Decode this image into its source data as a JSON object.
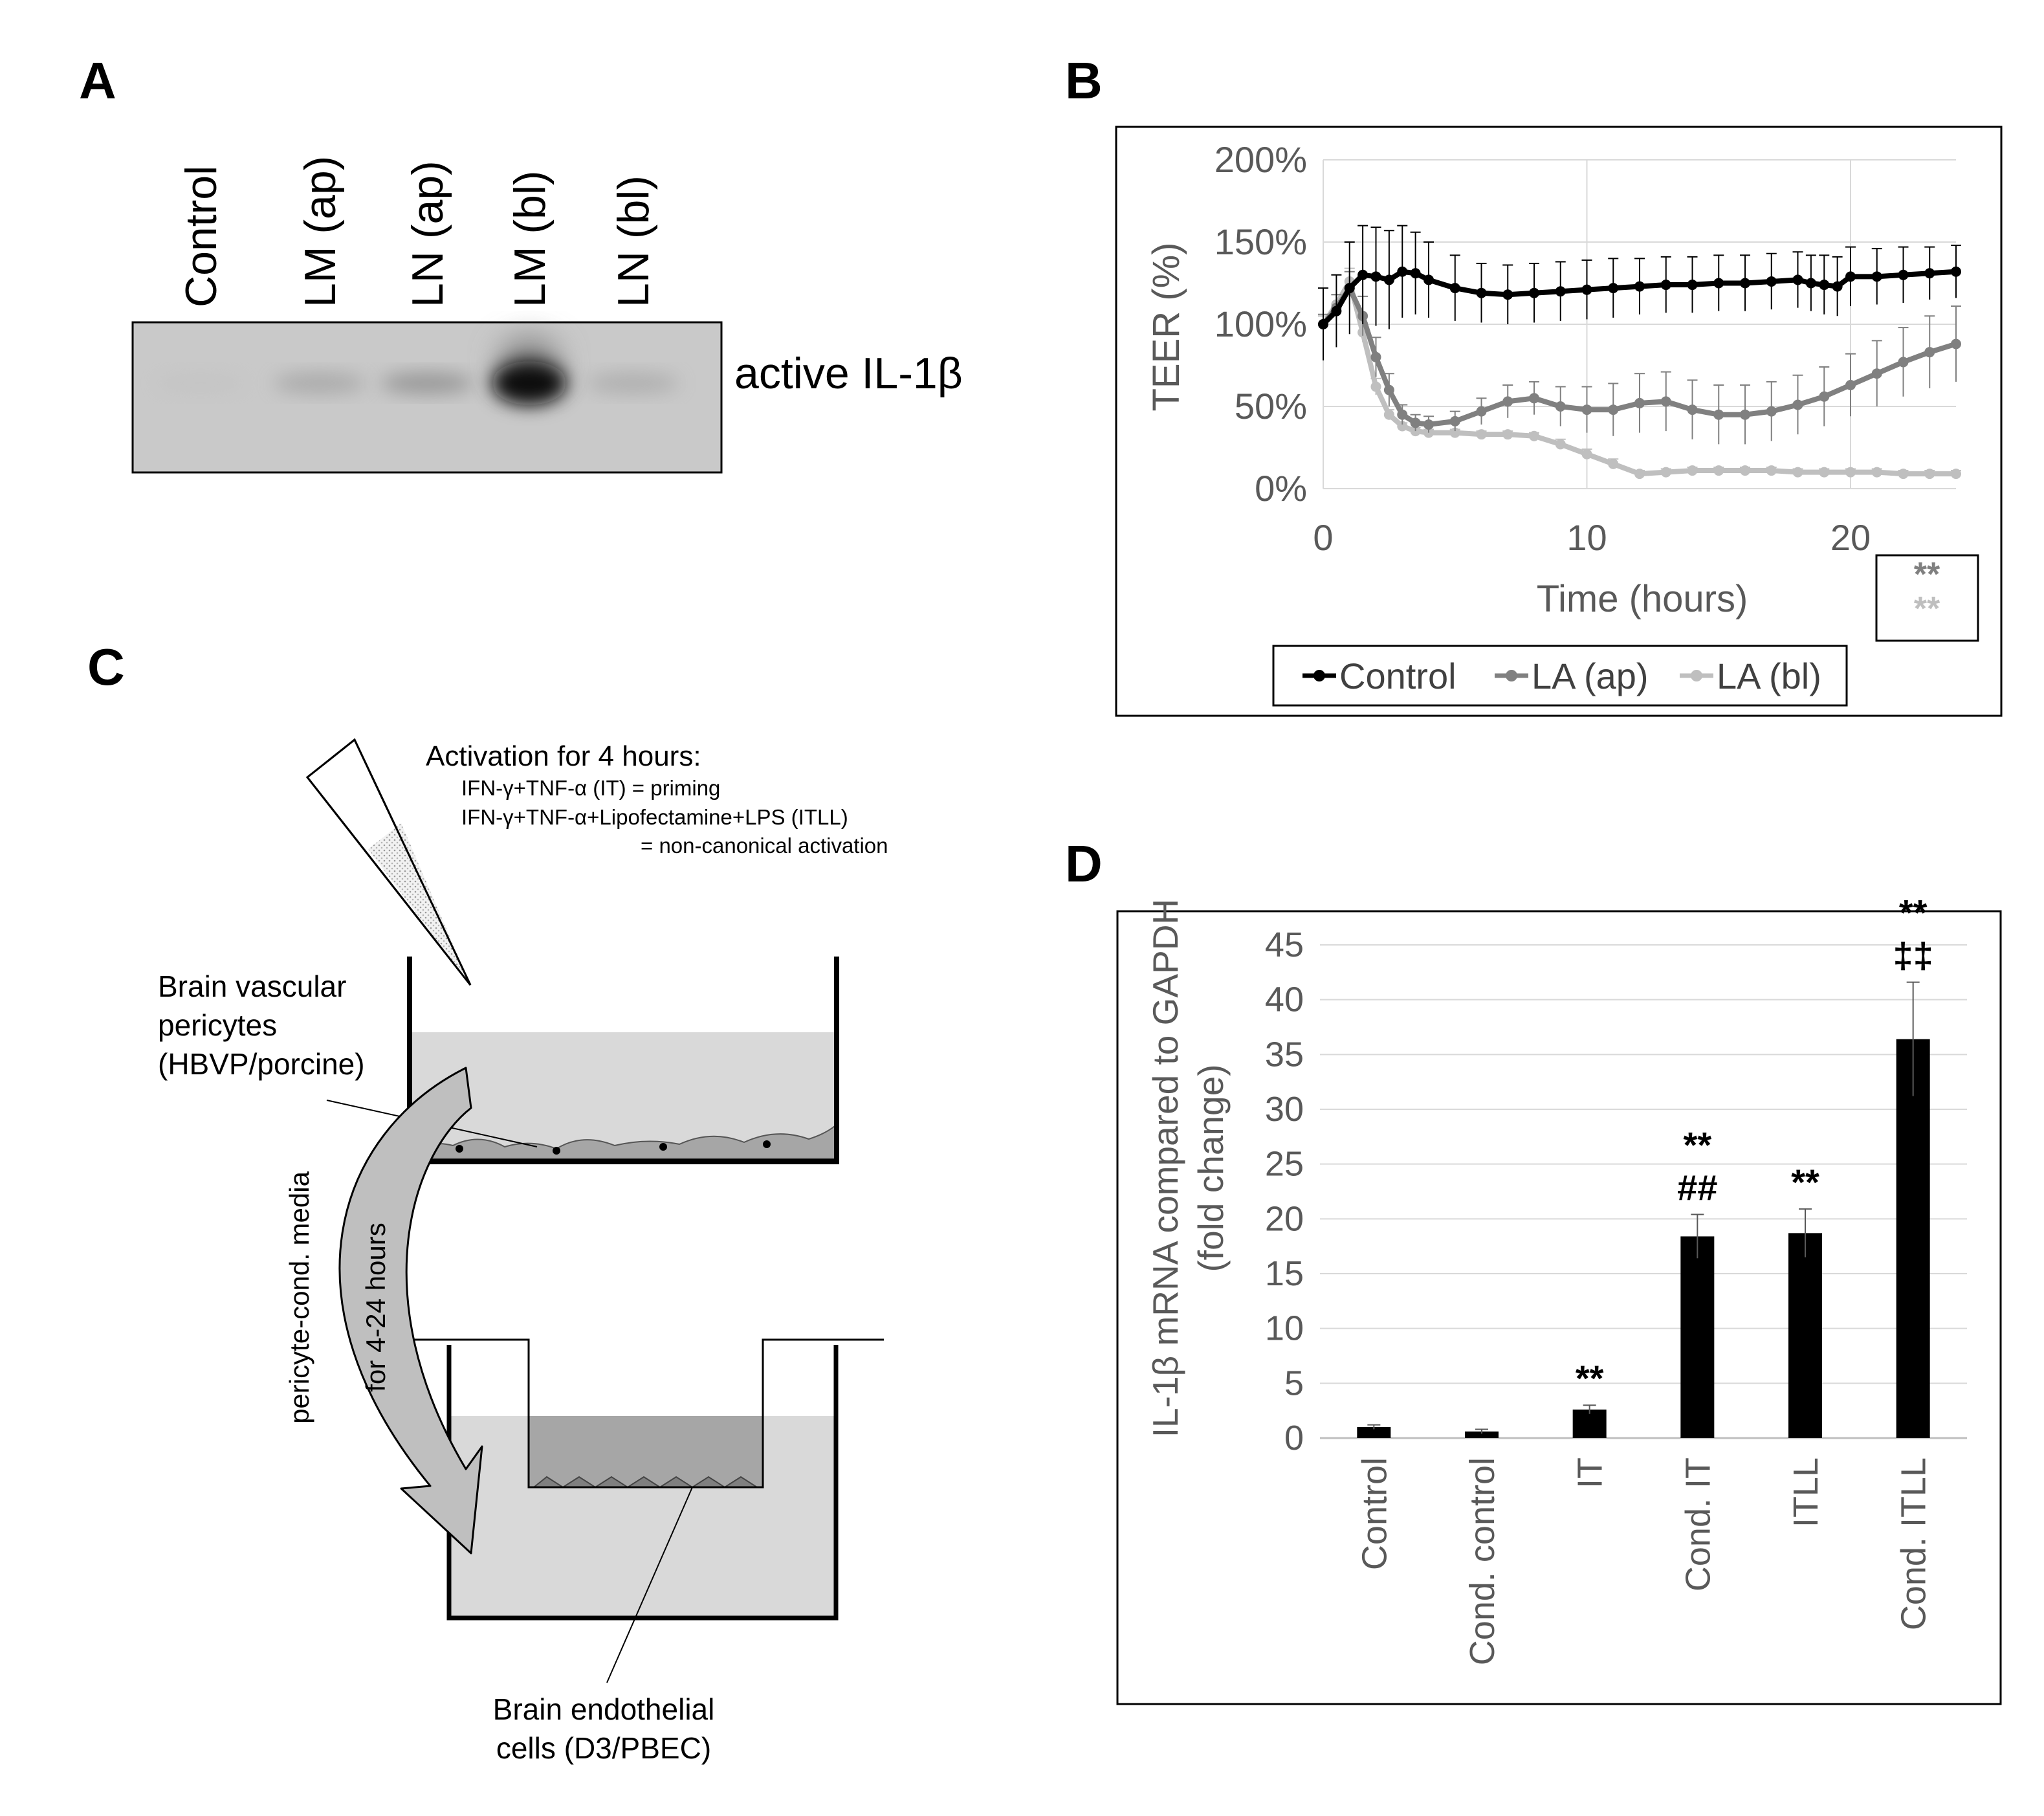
{
  "panels": {
    "a": {
      "letter": "A"
    },
    "b": {
      "letter": "B"
    },
    "c": {
      "letter": "C"
    },
    "d": {
      "letter": "D"
    }
  },
  "blot": {
    "lanes": [
      "Control",
      "LM (ap)",
      "LN (ap)",
      "LM (bl)",
      "LN (bl)"
    ],
    "band_label": "active IL-1β",
    "band_intensity": [
      0.05,
      0.25,
      0.35,
      0.95,
      0.22
    ]
  },
  "schematic": {
    "activation_title": "Activation  for 4 hours:",
    "activation_line1": "IFN-γ+TNF-α  (IT)  = priming",
    "activation_line2": "IFN-γ+TNF-α+Lipofectamine+LPS (ITLL)",
    "activation_line3": "= non-canonical activation",
    "pericyte_line1": "Brain vascular",
    "pericyte_line2": "pericytes",
    "pericyte_line3": "(HBVP/porcine)",
    "arrow_label1": "pericyte-cond.  media",
    "arrow_label2": "for 4-24 hours",
    "endothelial_line1": "Brain endothelial",
    "endothelial_line2": "cells (D3/PBEC)"
  },
  "chart_data": [
    {
      "type": "line",
      "ylabel": "TEER (%)",
      "xlabel": "Time (hours)",
      "ylim": [
        0,
        200
      ],
      "xlim": [
        0,
        24
      ],
      "yticks": [
        0,
        50,
        100,
        150,
        200
      ],
      "yticklabels": [
        "0%",
        "50%",
        "100%",
        "150%",
        "200%"
      ],
      "xticks": [
        0,
        10,
        20
      ],
      "xticklabels": [
        "0",
        "10",
        "20"
      ],
      "grid": true,
      "legend_position": "bottom",
      "annotations": [
        "**",
        "**"
      ],
      "series": [
        {
          "name": "Control",
          "color": "#000000",
          "x": [
            0,
            0.5,
            1,
            1.5,
            2,
            2.5,
            3,
            3.5,
            4,
            5,
            6,
            7,
            8,
            9,
            10,
            11,
            12,
            13,
            14,
            15,
            16,
            17,
            18,
            18.5,
            19,
            19.5,
            20,
            21,
            22,
            23,
            24
          ],
          "y": [
            100,
            108,
            122,
            130,
            129,
            127,
            132,
            131,
            127,
            122,
            119,
            118,
            119,
            120,
            121,
            122,
            123,
            124,
            124,
            125,
            125,
            126,
            127,
            125,
            124,
            123,
            129,
            129,
            130,
            131,
            132
          ],
          "err": [
            22,
            22,
            28,
            30,
            30,
            30,
            28,
            25,
            23,
            20,
            18,
            18,
            18,
            18,
            18,
            18,
            17,
            17,
            17,
            17,
            17,
            17,
            17,
            17,
            18,
            18,
            18,
            17,
            17,
            16,
            16
          ]
        },
        {
          "name": "LA (ap)",
          "color": "#808080",
          "x": [
            0,
            0.5,
            1,
            1.5,
            2,
            2.5,
            3,
            3.5,
            4,
            5,
            6,
            7,
            8,
            9,
            10,
            11,
            12,
            13,
            14,
            15,
            16,
            17,
            18,
            19,
            20,
            21,
            22,
            23,
            24
          ],
          "y": [
            100,
            110,
            122,
            105,
            80,
            60,
            45,
            40,
            39,
            41,
            47,
            53,
            55,
            50,
            48,
            48,
            52,
            53,
            48,
            45,
            45,
            47,
            51,
            56,
            63,
            70,
            77,
            83,
            88
          ],
          "err": [
            6,
            8,
            10,
            12,
            12,
            10,
            6,
            5,
            5,
            6,
            8,
            10,
            10,
            12,
            14,
            16,
            18,
            18,
            18,
            18,
            18,
            18,
            18,
            18,
            19,
            20,
            21,
            22,
            23
          ]
        },
        {
          "name": "LA (bl)",
          "color": "#bfbfbf",
          "x": [
            0,
            0.5,
            1,
            1.5,
            2,
            2.5,
            3,
            3.5,
            4,
            5,
            6,
            7,
            8,
            9,
            10,
            11,
            12,
            13,
            14,
            15,
            16,
            17,
            18,
            19,
            20,
            21,
            22,
            23,
            24
          ],
          "y": [
            100,
            112,
            126,
            95,
            62,
            45,
            38,
            35,
            34,
            34,
            33,
            33,
            32,
            27,
            21,
            15,
            9,
            10,
            11,
            11,
            11,
            11,
            10,
            10,
            10,
            10,
            9,
            9,
            9
          ],
          "err": [
            5,
            6,
            8,
            6,
            5,
            3,
            2,
            2,
            2,
            2,
            2,
            2,
            2,
            3,
            3,
            3,
            2,
            2,
            2,
            2,
            2,
            2,
            2,
            2,
            2,
            2,
            2,
            2,
            2
          ]
        }
      ]
    },
    {
      "type": "bar",
      "ylabel_line1": "IL-1β mRNA compared to GAPDH",
      "ylabel_line2": "(fold change)",
      "ylim": [
        0,
        45
      ],
      "yticks": [
        0,
        5,
        10,
        15,
        20,
        25,
        30,
        35,
        40,
        45
      ],
      "categories": [
        "Control",
        "Cond. control",
        "IT",
        "Cond. IT",
        "ITLL",
        "Cond. ITLL"
      ],
      "values": [
        1.0,
        0.6,
        2.6,
        18.4,
        18.7,
        36.4
      ],
      "errors": [
        0.2,
        0.2,
        0.4,
        2.0,
        2.2,
        5.2
      ],
      "sig_top": [
        "",
        "",
        "**",
        "**",
        "**",
        "**"
      ],
      "sig_bottom": [
        "",
        "",
        "",
        "##",
        "",
        "‡‡"
      ],
      "bar_color": "#000000",
      "grid": true
    }
  ]
}
